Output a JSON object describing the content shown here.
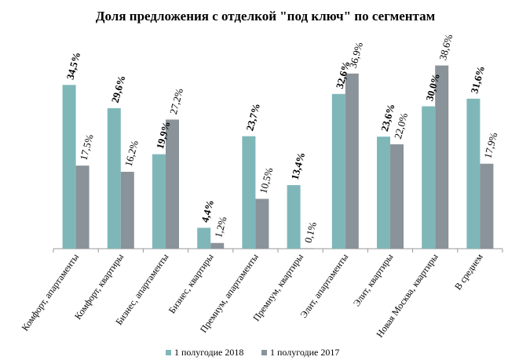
{
  "chart_data": {
    "type": "bar",
    "title": "Доля предложения с отделкой \"под ключ\" по сегментам",
    "categories": [
      "Комфорт, апартаменты",
      "Комфорт, квартиры",
      "Бизнес, апартаменты",
      "Бизнес, квартиры",
      "Премиум, апартаменты",
      "Премиум, квартиры",
      "Элит, апартаменты",
      "Элит, квартиры",
      "Новая Москва, квартиры",
      "В среднем"
    ],
    "series": [
      {
        "name": "1 полугодие 2018",
        "color": "#7fb7b9",
        "values": [
          34.5,
          29.6,
          19.9,
          4.4,
          23.7,
          13.4,
          32.6,
          23.6,
          30.0,
          31.6
        ],
        "labels": [
          "34,5%",
          "29,6%",
          "19,9%",
          "4,4%",
          "23,7%",
          "13,4%",
          "32,6%",
          "23,6%",
          "30,0%",
          "31,6%"
        ]
      },
      {
        "name": "1 полугодие 2017",
        "color": "#8a9399",
        "values": [
          17.5,
          16.2,
          27.2,
          1.2,
          10.5,
          0.1,
          36.9,
          22.0,
          38.6,
          17.9
        ],
        "labels": [
          "17,5%",
          "16,2%",
          "27,2%",
          "1,2%",
          "10,5%",
          "0,1%",
          "36,9%",
          "22,0%",
          "38,6%",
          "17,9%"
        ]
      }
    ],
    "ylim": [
      0,
      40
    ],
    "grid": false,
    "legend": "bottom"
  }
}
